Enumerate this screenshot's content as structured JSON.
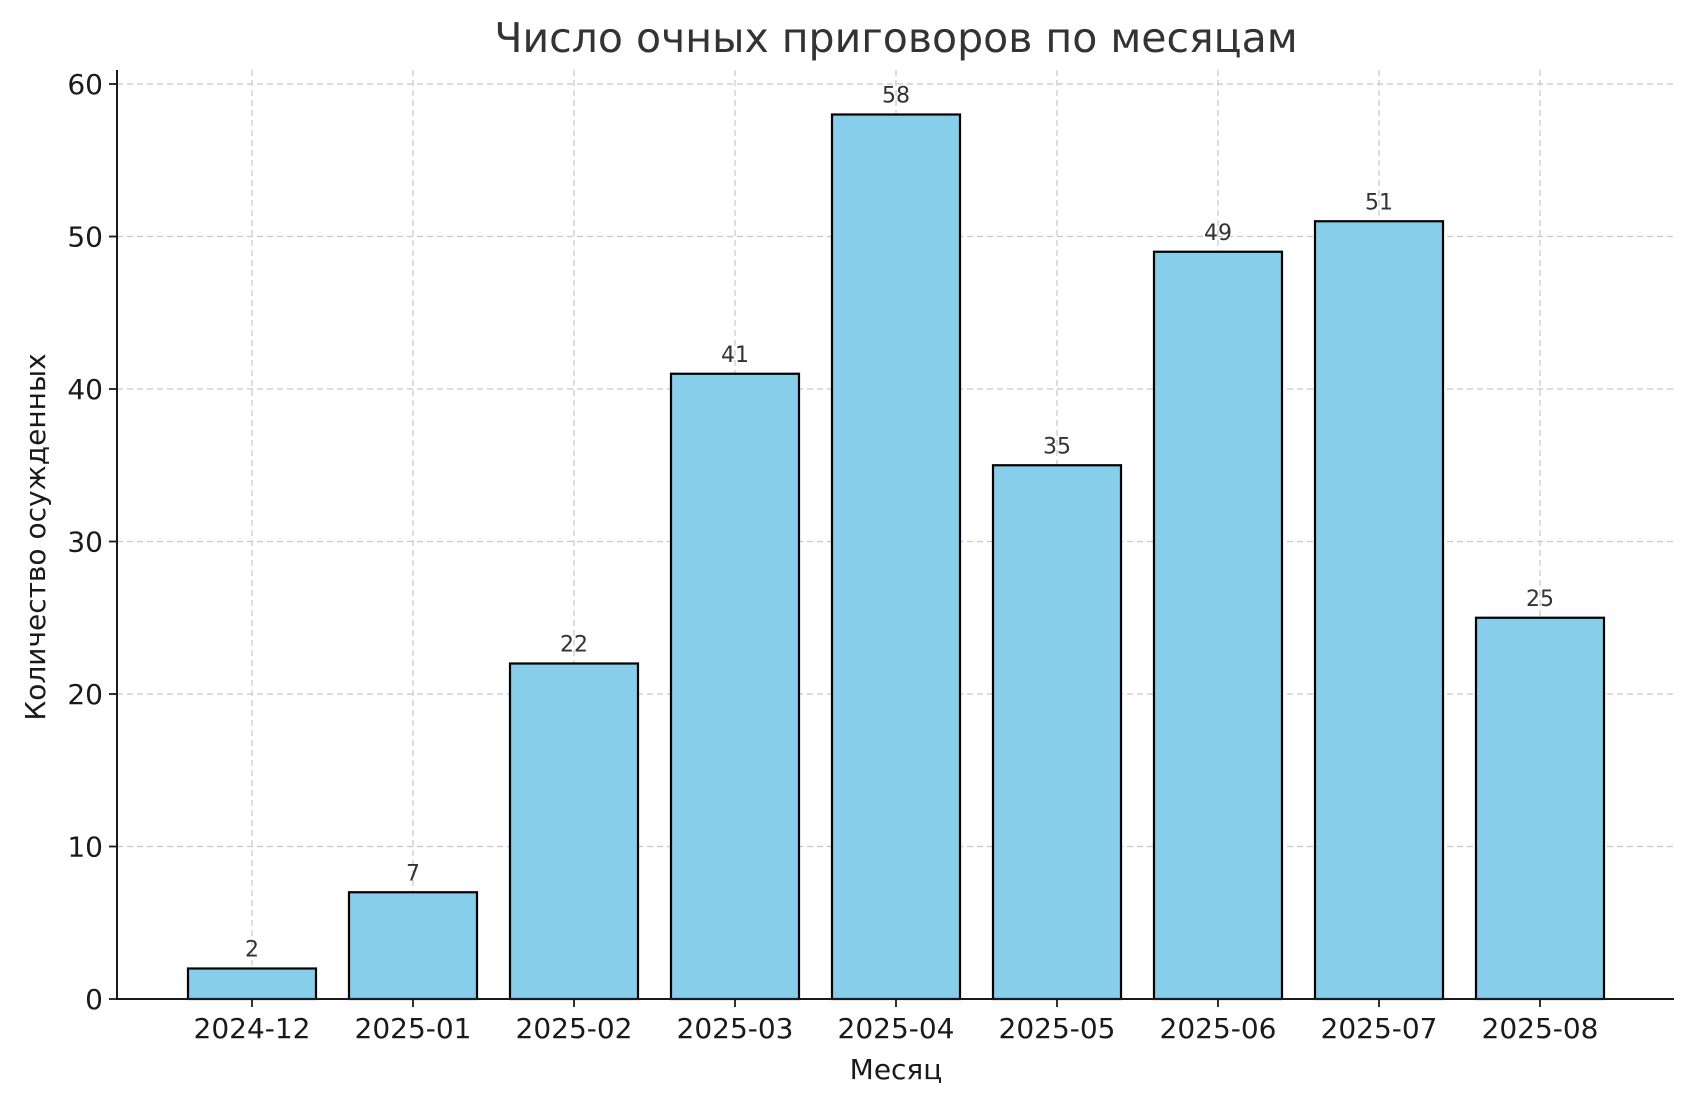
{
  "chart_data": {
    "type": "bar",
    "title": "Число очных приговоров по месяцам",
    "xlabel": "Месяц",
    "ylabel": "Количество осужденных",
    "categories": [
      "2024-12",
      "2025-01",
      "2025-02",
      "2025-03",
      "2025-04",
      "2025-05",
      "2025-06",
      "2025-07",
      "2025-08"
    ],
    "values": [
      2,
      7,
      22,
      41,
      58,
      35,
      49,
      51,
      25
    ],
    "data_labels": [
      "2",
      "7",
      "22",
      "41",
      "58",
      "35",
      "49",
      "51",
      "25"
    ],
    "ylim": [
      0,
      60
    ],
    "yticks": [
      "0",
      "10",
      "20",
      "30",
      "40",
      "50",
      "60"
    ],
    "grid": true,
    "bar_color": "#87CEEB",
    "edge_color": "#000000"
  }
}
